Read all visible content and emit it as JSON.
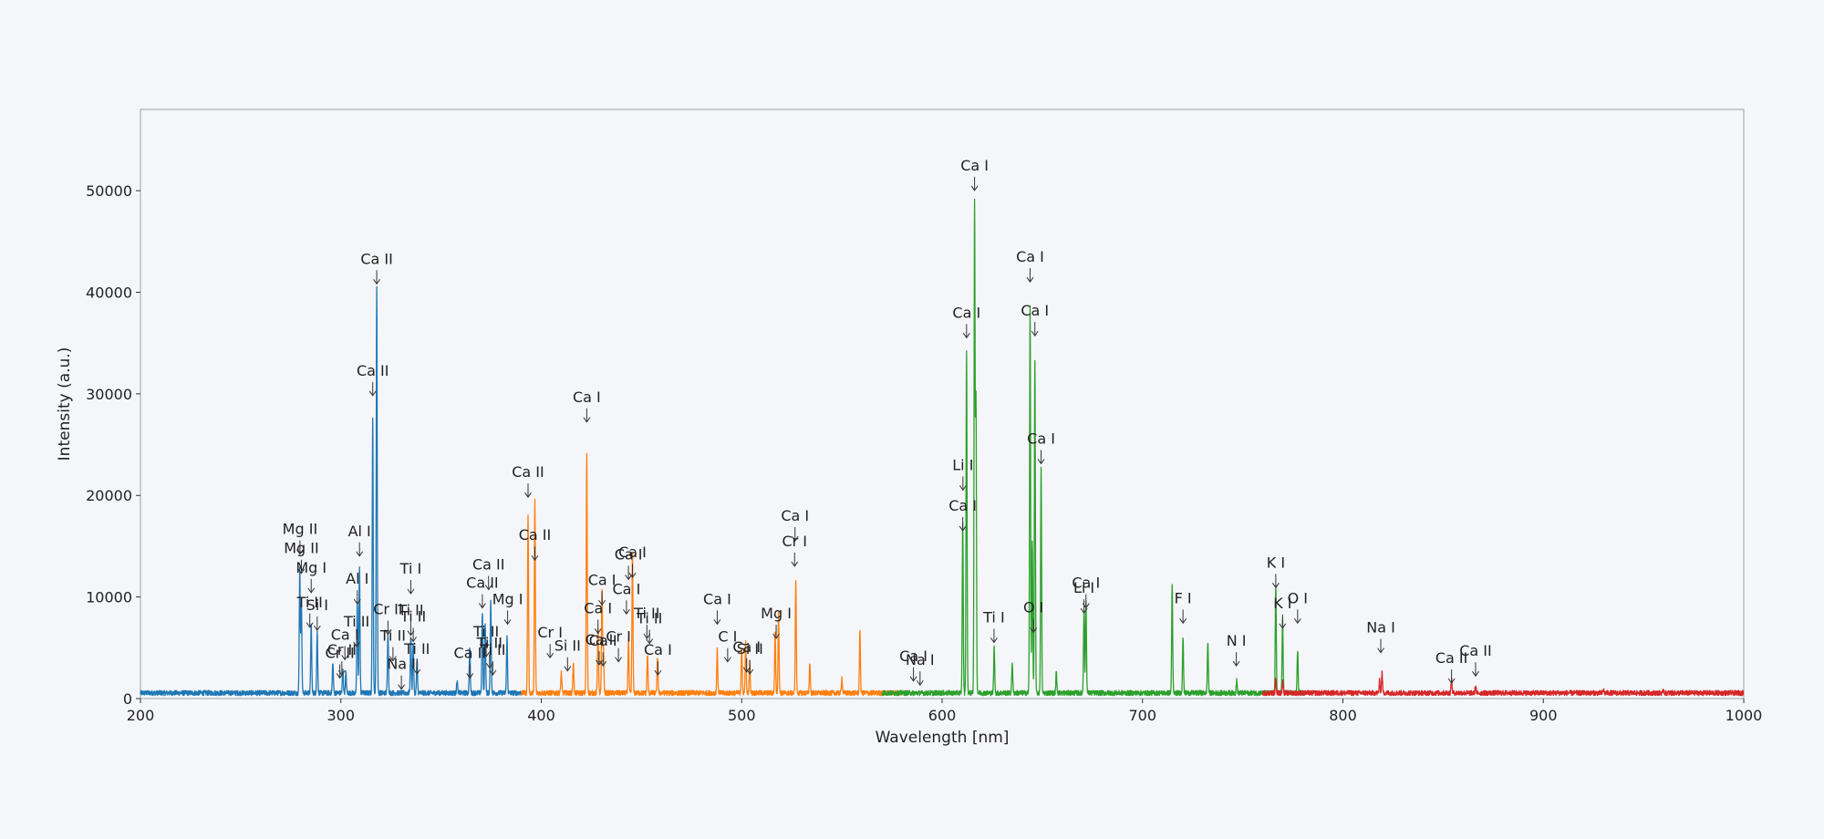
{
  "chart_data": {
    "type": "line",
    "title": "",
    "xlabel": "Wavelength [nm]",
    "ylabel": "Intensity (a.u.)",
    "xlim": [
      200,
      1000
    ],
    "ylim": [
      0,
      58000
    ],
    "x_ticks": [
      200,
      300,
      400,
      500,
      600,
      700,
      800,
      900,
      1000
    ],
    "y_ticks": [
      0,
      10000,
      20000,
      30000,
      40000,
      50000
    ],
    "grid": false,
    "legend": "none",
    "series": [
      {
        "color": "#1f77b4",
        "range": [
          200,
          390
        ],
        "peaks": [
          [
            279.5,
            12200
          ],
          [
            280.3,
            9000
          ],
          [
            285.2,
            6800
          ],
          [
            288.2,
            6000
          ],
          [
            296,
            3000
          ],
          [
            301,
            2300
          ],
          [
            302.5,
            2000
          ],
          [
            308.2,
            9000
          ],
          [
            309.3,
            12300
          ],
          [
            315.9,
            27000
          ],
          [
            317.9,
            40000
          ],
          [
            323.5,
            6000
          ],
          [
            334.9,
            5500
          ],
          [
            336.1,
            5000
          ],
          [
            338,
            3200
          ],
          [
            358,
            1200
          ],
          [
            364.3,
            4500
          ],
          [
            370.6,
            8000
          ],
          [
            372,
            7000
          ],
          [
            374.8,
            9000
          ],
          [
            382.9,
            5500
          ]
        ]
      },
      {
        "color": "#ff7f0e",
        "range": [
          390,
          580
        ],
        "peaks": [
          [
            393.4,
            17500
          ],
          [
            396.8,
            19000
          ],
          [
            410,
            2000
          ],
          [
            416,
            3000
          ],
          [
            422.7,
            23500
          ],
          [
            428.3,
            6500
          ],
          [
            430.3,
            10000
          ],
          [
            431,
            4500
          ],
          [
            443.5,
            5200
          ],
          [
            445.5,
            14000
          ],
          [
            453,
            3800
          ],
          [
            458,
            3500
          ],
          [
            487.8,
            4200
          ],
          [
            500,
            4500
          ],
          [
            502,
            5000
          ],
          [
            504,
            3000
          ],
          [
            516.7,
            6000
          ],
          [
            518.4,
            7800
          ],
          [
            527,
            11200
          ],
          [
            534,
            3000
          ],
          [
            550,
            1500
          ],
          [
            559,
            6000
          ],
          [
            589,
            2500
          ]
        ]
      },
      {
        "color": "#2ca02c",
        "range": [
          570,
          780
        ],
        "peaks": [
          [
            610.3,
            16800
          ],
          [
            612.2,
            33500
          ],
          [
            616.2,
            48000
          ],
          [
            616.9,
            29000
          ],
          [
            626,
            4500
          ],
          [
            635,
            3000
          ],
          [
            643.9,
            38000
          ],
          [
            645,
            15000
          ],
          [
            646.3,
            32500
          ],
          [
            649.4,
            22000
          ],
          [
            657,
            2000
          ],
          [
            670.8,
            8200
          ],
          [
            671.8,
            9000
          ],
          [
            714.8,
            10500
          ],
          [
            720.2,
            5500
          ],
          [
            732.6,
            5000
          ],
          [
            747,
            1200
          ],
          [
            766.5,
            10500
          ],
          [
            769.9,
            7200
          ],
          [
            777.4,
            4200
          ],
          [
            781,
            1000
          ]
        ]
      },
      {
        "color": "#d62728",
        "range": [
          760,
          1000
        ],
        "peaks": [
          [
            766.5,
            1300
          ],
          [
            770,
            1200
          ],
          [
            818.3,
            1200
          ],
          [
            819.5,
            2000
          ],
          [
            854.2,
            1300
          ],
          [
            866.2,
            700
          ],
          [
            930,
            300
          ],
          [
            960,
            250
          ]
        ]
      }
    ],
    "annotations": [
      {
        "text": "Mg II",
        "x": 279.6,
        "y": 16200
      },
      {
        "text": "Mg II",
        "x": 280.3,
        "y": 14300
      },
      {
        "text": "Mg I",
        "x": 285.2,
        "y": 12400
      },
      {
        "text": "Ti II",
        "x": 284.5,
        "y": 9000
      },
      {
        "text": "Si I",
        "x": 288.2,
        "y": 8700
      },
      {
        "text": "Cr II",
        "x": 300.5,
        "y": 4300
      },
      {
        "text": "Ca I",
        "x": 302,
        "y": 5800
      },
      {
        "text": "Cr II",
        "x": 299.5,
        "y": 4000
      },
      {
        "text": "Ti II",
        "x": 307.9,
        "y": 7100
      },
      {
        "text": "Al I",
        "x": 308.2,
        "y": 11300
      },
      {
        "text": "Al I",
        "x": 309.3,
        "y": 16000
      },
      {
        "text": "Ca II",
        "x": 317.9,
        "y": 42800
      },
      {
        "text": "Ca II",
        "x": 315.9,
        "y": 31800
      },
      {
        "text": "Cr II",
        "x": 323.5,
        "y": 8300
      },
      {
        "text": "Ti II",
        "x": 326,
        "y": 5700
      },
      {
        "text": "Na I",
        "x": 330.2,
        "y": 2900
      },
      {
        "text": "Ti II",
        "x": 334.9,
        "y": 8200
      },
      {
        "text": "Ti II",
        "x": 336.1,
        "y": 7600
      },
      {
        "text": "Ti II",
        "x": 338,
        "y": 4400
      },
      {
        "text": "Ti I",
        "x": 334.9,
        "y": 12300
      },
      {
        "text": "Ca II",
        "x": 364.4,
        "y": 4000
      },
      {
        "text": "Ti II",
        "x": 372.5,
        "y": 6100
      },
      {
        "text": "Ti II",
        "x": 374.2,
        "y": 5000
      },
      {
        "text": "Ti II",
        "x": 375.8,
        "y": 4300
      },
      {
        "text": "Ca II",
        "x": 370.6,
        "y": 10900
      },
      {
        "text": "Ca II",
        "x": 373.7,
        "y": 12700
      },
      {
        "text": "Mg I",
        "x": 383.2,
        "y": 9300
      },
      {
        "text": "Ca II",
        "x": 393.4,
        "y": 21800
      },
      {
        "text": "Ca II",
        "x": 396.8,
        "y": 15600
      },
      {
        "text": "Cr I",
        "x": 404.4,
        "y": 6000
      },
      {
        "text": "Si II",
        "x": 413.1,
        "y": 4700
      },
      {
        "text": "Ca I",
        "x": 422.7,
        "y": 29200
      },
      {
        "text": "Ca I",
        "x": 430.3,
        "y": 11200
      },
      {
        "text": "Ca I",
        "x": 428.3,
        "y": 8400
      },
      {
        "text": "Ca I",
        "x": 428.9,
        "y": 5300
      },
      {
        "text": "Ca I",
        "x": 430.8,
        "y": 5200
      },
      {
        "text": "Cr I",
        "x": 438.5,
        "y": 5600
      },
      {
        "text": "Ca I",
        "x": 442.5,
        "y": 10300
      },
      {
        "text": "Ca I",
        "x": 445.5,
        "y": 13900
      },
      {
        "text": "Ca I",
        "x": 443.5,
        "y": 13700
      },
      {
        "text": "Ti II",
        "x": 452.7,
        "y": 7900
      },
      {
        "text": "Ti II",
        "x": 454,
        "y": 7400
      },
      {
        "text": "Ca I",
        "x": 458.2,
        "y": 4300
      },
      {
        "text": "Ca I",
        "x": 487.8,
        "y": 9300
      },
      {
        "text": "C I",
        "x": 493,
        "y": 5600
      },
      {
        "text": "Ca I",
        "x": 502.5,
        "y": 4600
      },
      {
        "text": "Si II",
        "x": 504.1,
        "y": 4400
      },
      {
        "text": "Mg I",
        "x": 517.2,
        "y": 7900
      },
      {
        "text": "Ca I",
        "x": 526.6,
        "y": 17500
      },
      {
        "text": "Cr I",
        "x": 526.4,
        "y": 15000
      },
      {
        "text": "Ca I",
        "x": 585.7,
        "y": 3700
      },
      {
        "text": "Na I",
        "x": 589,
        "y": 3300
      },
      {
        "text": "Ca I",
        "x": 612.2,
        "y": 37500
      },
      {
        "text": "Li I",
        "x": 610.4,
        "y": 22500
      },
      {
        "text": "Ca I",
        "x": 610.3,
        "y": 18500
      },
      {
        "text": "Ca I",
        "x": 616.2,
        "y": 52000
      },
      {
        "text": "Ti I",
        "x": 625.9,
        "y": 7500
      },
      {
        "text": "Ca I",
        "x": 643.9,
        "y": 43000
      },
      {
        "text": "Ca I",
        "x": 646.3,
        "y": 37700
      },
      {
        "text": "Ca I",
        "x": 649.4,
        "y": 25100
      },
      {
        "text": "O I",
        "x": 645.6,
        "y": 8500
      },
      {
        "text": "Li I",
        "x": 670.8,
        "y": 10400
      },
      {
        "text": "Ca I",
        "x": 671.8,
        "y": 10900
      },
      {
        "text": "F I",
        "x": 720.2,
        "y": 9400
      },
      {
        "text": "N I",
        "x": 746.8,
        "y": 5200
      },
      {
        "text": "K I",
        "x": 766.5,
        "y": 12900
      },
      {
        "text": "K I",
        "x": 769.9,
        "y": 8900
      },
      {
        "text": "O I",
        "x": 777.4,
        "y": 9400
      },
      {
        "text": "Na I",
        "x": 818.9,
        "y": 6500
      },
      {
        "text": "Ca II",
        "x": 854.2,
        "y": 3500
      },
      {
        "text": "Ca II",
        "x": 866.2,
        "y": 4200
      }
    ]
  }
}
